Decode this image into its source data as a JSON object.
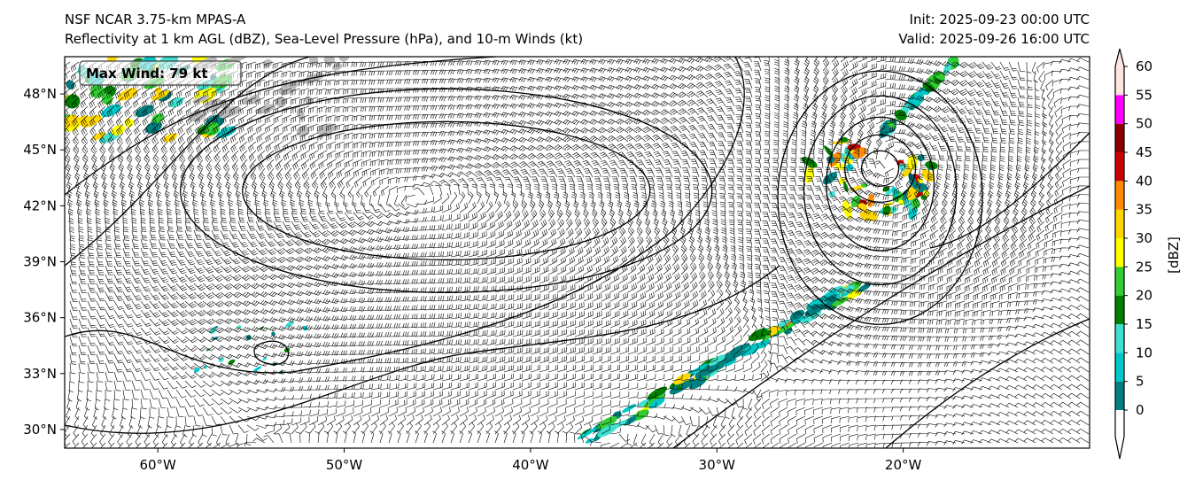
{
  "header": {
    "model": "NSF NCAR 3.75-km MPAS-A",
    "fields": "Reflectivity at 1 km AGL (dBZ), Sea-Level Pressure (hPa), and 10-m Winds (kt)",
    "init": "Init: 2025-09-23 00:00 UTC",
    "valid": "Valid: 2025-09-26 16:00 UTC"
  },
  "annotation": {
    "max_wind": "Max Wind: 79 kt"
  },
  "map": {
    "lon_range": [
      -65,
      -10
    ],
    "lat_range": [
      29,
      50
    ],
    "lon_ticks": [
      {
        "value": -60,
        "label": "60°W"
      },
      {
        "value": -50,
        "label": "50°W"
      },
      {
        "value": -40,
        "label": "40°W"
      },
      {
        "value": -30,
        "label": "30°W"
      },
      {
        "value": -20,
        "label": "20°W"
      }
    ],
    "lat_ticks": [
      {
        "value": 48,
        "label": "48°N"
      },
      {
        "value": 45,
        "label": "45°N"
      },
      {
        "value": 42,
        "label": "42°N"
      },
      {
        "value": 39,
        "label": "39°N"
      },
      {
        "value": 36,
        "label": "36°N"
      },
      {
        "value": 33,
        "label": "33°N"
      },
      {
        "value": 30,
        "label": "30°N"
      }
    ],
    "high_center": [
      -45,
      43
    ],
    "low_center": [
      -21,
      44
    ]
  },
  "colorbar": {
    "label": "[dBZ]",
    "ticks": [
      "0",
      "5",
      "10",
      "15",
      "20",
      "25",
      "30",
      "35",
      "40",
      "45",
      "50",
      "55",
      "60"
    ],
    "levels": [
      0,
      5,
      10,
      15,
      20,
      25,
      30,
      35,
      40,
      45,
      50,
      55,
      60
    ],
    "colors": [
      "#008080",
      "#00c8c8",
      "#40e0d0",
      "#008000",
      "#32cd32",
      "#ffff00",
      "#ffd700",
      "#ff8c00",
      "#cc0000",
      "#8b0000",
      "#ff00ff",
      "#ffe4e1"
    ],
    "under_color": "#ffffff",
    "over_color": "#ffe4e1"
  }
}
